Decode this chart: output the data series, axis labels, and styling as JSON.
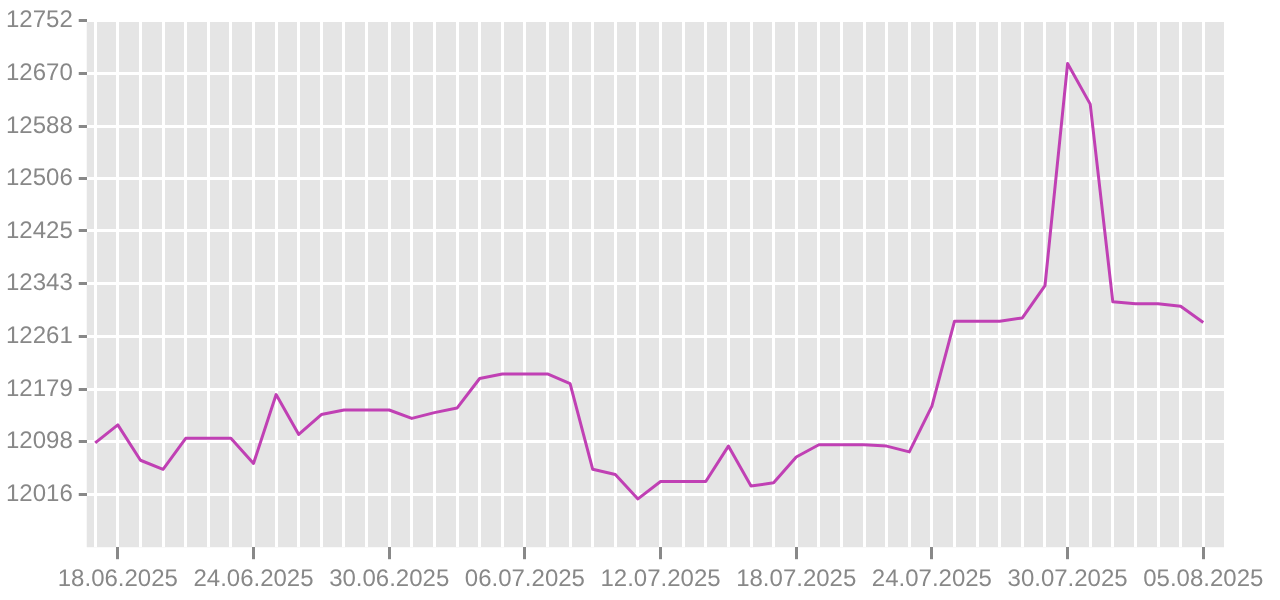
{
  "chart_data": {
    "type": "line",
    "x": [
      "2025-06-17",
      "2025-06-18",
      "2025-06-19",
      "2025-06-20",
      "2025-06-21",
      "2025-06-22",
      "2025-06-23",
      "2025-06-24",
      "2025-06-25",
      "2025-06-26",
      "2025-06-27",
      "2025-06-28",
      "2025-06-29",
      "2025-06-30",
      "2025-07-01",
      "2025-07-02",
      "2025-07-03",
      "2025-07-04",
      "2025-07-05",
      "2025-07-06",
      "2025-07-07",
      "2025-07-08",
      "2025-07-09",
      "2025-07-10",
      "2025-07-11",
      "2025-07-12",
      "2025-07-13",
      "2025-07-14",
      "2025-07-15",
      "2025-07-16",
      "2025-07-17",
      "2025-07-18",
      "2025-07-19",
      "2025-07-20",
      "2025-07-21",
      "2025-07-22",
      "2025-07-23",
      "2025-07-24",
      "2025-07-25",
      "2025-07-26",
      "2025-07-27",
      "2025-07-28",
      "2025-07-29",
      "2025-07-30",
      "2025-07-31",
      "2025-08-01",
      "2025-08-02",
      "2025-08-03",
      "2025-08-04",
      "2025-08-05"
    ],
    "series": [
      {
        "color": "#c040b4",
        "values": [
          12096,
          12124,
          12069,
          12055,
          12103,
          12103,
          12103,
          12064,
          12171,
          12109,
          12140,
          12147,
          12147,
          12147,
          12134,
          12143,
          12150,
          12196,
          12203,
          12203,
          12203,
          12188,
          12055,
          12047,
          12009,
          12036,
          12036,
          12036,
          12091,
          12029,
          12034,
          12074,
          12093,
          12093,
          12093,
          12091,
          12082,
          12153,
          12285,
          12285,
          12285,
          12290,
          12340,
          12685,
          12622,
          12315,
          12312,
          12312,
          12308,
          12283
        ]
      }
    ],
    "ylim": [
      11934,
      12752
    ],
    "yticks": [
      12016,
      12098,
      12179,
      12261,
      12343,
      12425,
      12506,
      12588,
      12670,
      12752
    ],
    "xlim": [
      "2025-06-16T15:00",
      "2025-08-05T22:00"
    ],
    "xticks": [
      {
        "value": "2025-06-17",
        "label": null
      },
      {
        "value": "2025-06-18",
        "label": "18.06.2025"
      },
      {
        "value": "2025-06-19",
        "label": null
      },
      {
        "value": "2025-06-20",
        "label": null
      },
      {
        "value": "2025-06-21",
        "label": null
      },
      {
        "value": "2025-06-22",
        "label": null
      },
      {
        "value": "2025-06-23",
        "label": null
      },
      {
        "value": "2025-06-24",
        "label": "24.06.2025"
      },
      {
        "value": "2025-06-25",
        "label": null
      },
      {
        "value": "2025-06-26",
        "label": null
      },
      {
        "value": "2025-06-27",
        "label": null
      },
      {
        "value": "2025-06-28",
        "label": null
      },
      {
        "value": "2025-06-29",
        "label": null
      },
      {
        "value": "2025-06-30",
        "label": "30.06.2025"
      },
      {
        "value": "2025-07-01",
        "label": null
      },
      {
        "value": "2025-07-02",
        "label": null
      },
      {
        "value": "2025-07-03",
        "label": null
      },
      {
        "value": "2025-07-04",
        "label": null
      },
      {
        "value": "2025-07-05",
        "label": null
      },
      {
        "value": "2025-07-06",
        "label": "06.07.2025"
      },
      {
        "value": "2025-07-07",
        "label": null
      },
      {
        "value": "2025-07-08",
        "label": null
      },
      {
        "value": "2025-07-09",
        "label": null
      },
      {
        "value": "2025-07-10",
        "label": null
      },
      {
        "value": "2025-07-11",
        "label": null
      },
      {
        "value": "2025-07-12",
        "label": "12.07.2025"
      },
      {
        "value": "2025-07-13",
        "label": null
      },
      {
        "value": "2025-07-14",
        "label": null
      },
      {
        "value": "2025-07-15",
        "label": null
      },
      {
        "value": "2025-07-16",
        "label": null
      },
      {
        "value": "2025-07-17",
        "label": null
      },
      {
        "value": "2025-07-18",
        "label": "18.07.2025"
      },
      {
        "value": "2025-07-19",
        "label": null
      },
      {
        "value": "2025-07-20",
        "label": null
      },
      {
        "value": "2025-07-21",
        "label": null
      },
      {
        "value": "2025-07-22",
        "label": null
      },
      {
        "value": "2025-07-23",
        "label": null
      },
      {
        "value": "2025-07-24",
        "label": "24.07.2025"
      },
      {
        "value": "2025-07-25",
        "label": null
      },
      {
        "value": "2025-07-26",
        "label": null
      },
      {
        "value": "2025-07-27",
        "label": null
      },
      {
        "value": "2025-07-28",
        "label": null
      },
      {
        "value": "2025-07-29",
        "label": null
      },
      {
        "value": "2025-07-30",
        "label": "30.07.2025"
      },
      {
        "value": "2025-07-31",
        "label": null
      },
      {
        "value": "2025-08-01",
        "label": null
      },
      {
        "value": "2025-08-02",
        "label": null
      },
      {
        "value": "2025-08-03",
        "label": null
      },
      {
        "value": "2025-08-04",
        "label": null
      },
      {
        "value": "2025-08-05",
        "label": "05.08.2025"
      }
    ],
    "grid": true,
    "legend": false,
    "marker": "none",
    "line_style": "solid"
  }
}
